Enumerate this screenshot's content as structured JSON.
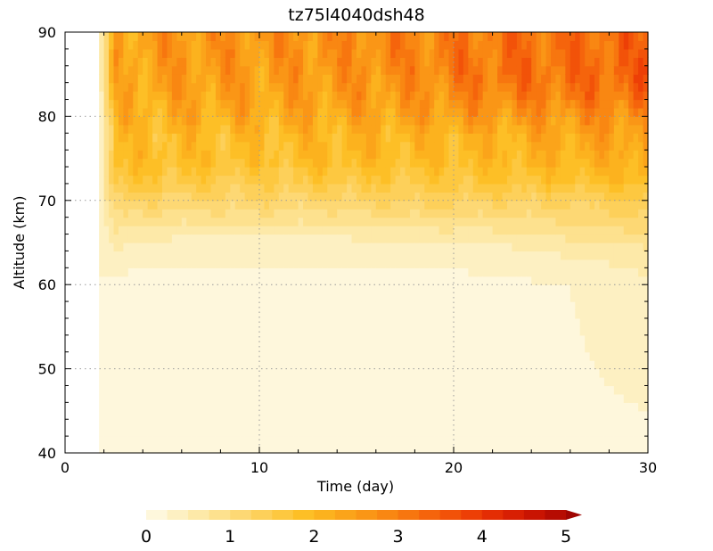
{
  "chart_data": {
    "type": "heatmap",
    "title": "tz75l4040dsh48",
    "xlabel": "Time (day)",
    "ylabel": "Altitude (km)",
    "xlim": [
      0,
      30
    ],
    "ylim": [
      40,
      90
    ],
    "x_ticks": [
      "0",
      "10",
      "20",
      "30"
    ],
    "y_ticks": [
      "40",
      "50",
      "60",
      "70",
      "80",
      "90"
    ],
    "grid": "dotted",
    "data_start_day": 1.75,
    "colorbar": {
      "placement": "bottom",
      "range": [
        0,
        5
      ],
      "step": 0.25,
      "ticks": [
        "0",
        "1",
        "2",
        "3",
        "4",
        "5"
      ],
      "extend": "max",
      "colors": [
        "#fef7dc",
        "#fdf0c2",
        "#fde9a8",
        "#fde18e",
        "#fdd874",
        "#fdd05a",
        "#fdc840",
        "#fdbf26",
        "#fcb21e",
        "#fba41a",
        "#fa9616",
        "#f98712",
        "#f7760f",
        "#f5640c",
        "#f25209",
        "#ed3f06",
        "#e42d04",
        "#d81f03",
        "#c91402",
        "#b60c02",
        "#a00502"
      ]
    },
    "altitude_levels": [
      40,
      60,
      62.5,
      65,
      67.5,
      70,
      72.5,
      75,
      77.5,
      80,
      82.5,
      85,
      87.5,
      90
    ],
    "profile_days": [
      2,
      6,
      10,
      14,
      18,
      22,
      26,
      30
    ],
    "profiles": [
      [
        0.2,
        0.2,
        0.3,
        0.6,
        0.9,
        1.3,
        1.7,
        1.9,
        1.8,
        2.0,
        2.1,
        2.2,
        2.3,
        2.3
      ],
      [
        0.2,
        0.2,
        0.25,
        0.4,
        0.8,
        1.2,
        1.6,
        1.9,
        1.9,
        2.2,
        2.4,
        2.5,
        2.6,
        2.6
      ],
      [
        0.2,
        0.2,
        0.25,
        0.4,
        0.8,
        1.2,
        1.5,
        1.8,
        1.9,
        2.2,
        2.4,
        2.5,
        2.6,
        2.6
      ],
      [
        0.2,
        0.2,
        0.25,
        0.4,
        0.8,
        1.2,
        1.6,
        2.0,
        2.0,
        2.3,
        2.5,
        2.6,
        2.7,
        2.7
      ],
      [
        0.2,
        0.2,
        0.25,
        0.5,
        0.9,
        1.3,
        1.6,
        1.9,
        2.0,
        2.4,
        2.6,
        2.8,
        2.9,
        2.9
      ],
      [
        0.2,
        0.2,
        0.3,
        0.5,
        0.9,
        1.3,
        1.7,
        2.0,
        2.1,
        2.5,
        2.9,
        3.2,
        3.1,
        3.1
      ],
      [
        0.2,
        0.25,
        0.4,
        0.7,
        1.0,
        1.3,
        1.8,
        2.1,
        2.3,
        2.6,
        3.0,
        3.2,
        3.2,
        3.2
      ],
      [
        0.2,
        0.4,
        0.6,
        0.8,
        1.2,
        1.5,
        2.0,
        2.3,
        2.5,
        2.8,
        3.2,
        3.5,
        3.3,
        3.3
      ]
    ]
  }
}
